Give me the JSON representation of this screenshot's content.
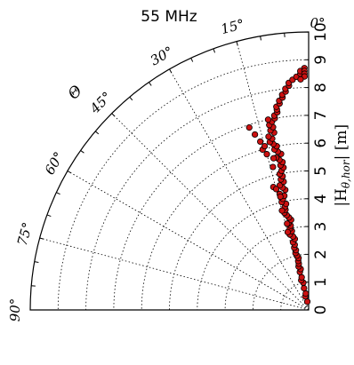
{
  "chart_data": {
    "type": "scatter",
    "projection": "polar-quadrant",
    "title": "55 MHz",
    "angle_label": "Θ",
    "radial_label": "|H_θ,hor| [m]",
    "radial_label_parts": {
      "prefix": "|H",
      "sub": "θ,hor",
      "suffix": "| [m]"
    },
    "angle_ticks": [
      {
        "deg": 0,
        "label": "0°"
      },
      {
        "deg": 15,
        "label": "15°"
      },
      {
        "deg": 30,
        "label": "30°"
      },
      {
        "deg": 45,
        "label": "45°"
      },
      {
        "deg": 60,
        "label": "60°"
      },
      {
        "deg": 75,
        "label": "75°"
      },
      {
        "deg": 90,
        "label": "90°"
      }
    ],
    "radial_ticks": [
      "0",
      "1",
      "2",
      "3",
      "4",
      "5",
      "6",
      "7",
      "8",
      "9",
      "10"
    ],
    "rlim": [
      0,
      10
    ],
    "theta_range_deg": [
      0,
      90
    ],
    "grid": true,
    "marker_color": "#cc1111",
    "points": [
      [
        0.3,
        9
      ],
      [
        0.5,
        14
      ],
      [
        0.6,
        10
      ],
      [
        0.8,
        12
      ],
      [
        1.0,
        11
      ],
      [
        1.1,
        14
      ],
      [
        1.2,
        12
      ],
      [
        1.4,
        13
      ],
      [
        1.5,
        11
      ],
      [
        1.6,
        13
      ],
      [
        1.7,
        12
      ],
      [
        1.8,
        12
      ],
      [
        1.9,
        11
      ],
      [
        2.0,
        12
      ],
      [
        2.1,
        13
      ],
      [
        2.2,
        12
      ],
      [
        2.3,
        13
      ],
      [
        2.4,
        12
      ],
      [
        2.5,
        13
      ],
      [
        2.6,
        11
      ],
      [
        2.7,
        12
      ],
      [
        2.8,
        14
      ],
      [
        2.9,
        12
      ],
      [
        3.0,
        13
      ],
      [
        3.1,
        12
      ],
      [
        3.2,
        13
      ],
      [
        3.3,
        11
      ],
      [
        3.4,
        12
      ],
      [
        3.5,
        13
      ],
      [
        3.6,
        14
      ],
      [
        3.7,
        13
      ],
      [
        3.8,
        13
      ],
      [
        3.9,
        12
      ],
      [
        4.0,
        14
      ],
      [
        4.1,
        13
      ],
      [
        4.2,
        12
      ],
      [
        4.3,
        14
      ],
      [
        4.4,
        11
      ],
      [
        4.5,
        12
      ],
      [
        4.6,
        13
      ],
      [
        4.7,
        11
      ],
      [
        4.8,
        12
      ],
      [
        4.9,
        11
      ],
      [
        5.0,
        12
      ],
      [
        5.1,
        11
      ],
      [
        5.2,
        10
      ],
      [
        5.3,
        11
      ],
      [
        5.4,
        10
      ],
      [
        5.5,
        11
      ],
      [
        5.6,
        12
      ],
      [
        5.7,
        10
      ],
      [
        5.8,
        11
      ],
      [
        5.9,
        12
      ],
      [
        6.0,
        11
      ],
      [
        6.1,
        12
      ],
      [
        6.2,
        13
      ],
      [
        6.3,
        12
      ],
      [
        6.4,
        13
      ],
      [
        6.5,
        11
      ],
      [
        6.6,
        12
      ],
      [
        6.7,
        11
      ],
      [
        6.8,
        12
      ],
      [
        6.9,
        11
      ],
      [
        7.0,
        10
      ],
      [
        7.1,
        10
      ],
      [
        7.2,
        9
      ],
      [
        7.3,
        9
      ],
      [
        7.4,
        9
      ],
      [
        7.5,
        8
      ],
      [
        7.6,
        8
      ],
      [
        7.7,
        7
      ],
      [
        7.8,
        7
      ],
      [
        7.9,
        6
      ],
      [
        8.0,
        6
      ],
      [
        8.1,
        5
      ],
      [
        8.2,
        5
      ],
      [
        8.3,
        4
      ],
      [
        8.4,
        3
      ],
      [
        8.5,
        2
      ],
      [
        8.6,
        2
      ],
      [
        8.7,
        1
      ],
      [
        8.6,
        1
      ],
      [
        8.5,
        1
      ],
      [
        8.4,
        1
      ],
      [
        8.3,
        2
      ],
      [
        3.2,
        14
      ],
      [
        2.9,
        15
      ],
      [
        4.2,
        14
      ],
      [
        5.6,
        13
      ],
      [
        6.3,
        16
      ],
      [
        6.6,
        17
      ],
      [
        6.9,
        18
      ],
      [
        6.0,
        16
      ],
      [
        5.8,
        15
      ],
      [
        4.6,
        16
      ],
      [
        4.5,
        15
      ],
      [
        3.7,
        15
      ],
      [
        5.3,
        14
      ],
      [
        6.1,
        15
      ],
      [
        7.0,
        12
      ]
    ]
  }
}
